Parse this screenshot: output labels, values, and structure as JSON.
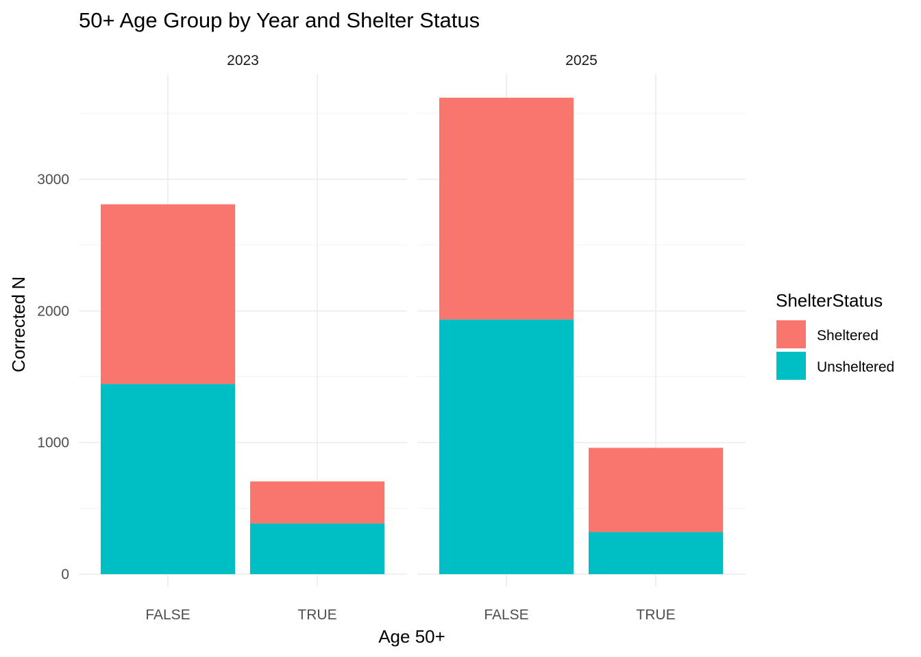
{
  "chart_data": {
    "type": "bar",
    "stacked": true,
    "title": "50+ Age Group by Year and Shelter Status",
    "xlabel": "Age 50+",
    "ylabel": "Corrected N",
    "ylim": [
      0,
      3800
    ],
    "y_ticks": [
      0,
      1000,
      2000,
      3000
    ],
    "grid": true,
    "facets": [
      "2023",
      "2025"
    ],
    "categories": [
      "FALSE",
      "TRUE"
    ],
    "series": [
      {
        "name": "Unsheltered",
        "color": "#00BFC4",
        "values": {
          "2023": [
            1445,
            385
          ],
          "2025": [
            1935,
            320
          ]
        }
      },
      {
        "name": "Sheltered",
        "color": "#F8766D",
        "values": {
          "2023": [
            1365,
            320
          ],
          "2025": [
            1685,
            640
          ]
        }
      }
    ],
    "legend": {
      "title": "ShelterStatus",
      "position": "right",
      "items": [
        {
          "label": "Sheltered",
          "color": "#F8766D"
        },
        {
          "label": "Unsheltered",
          "color": "#00BFC4"
        }
      ]
    }
  }
}
